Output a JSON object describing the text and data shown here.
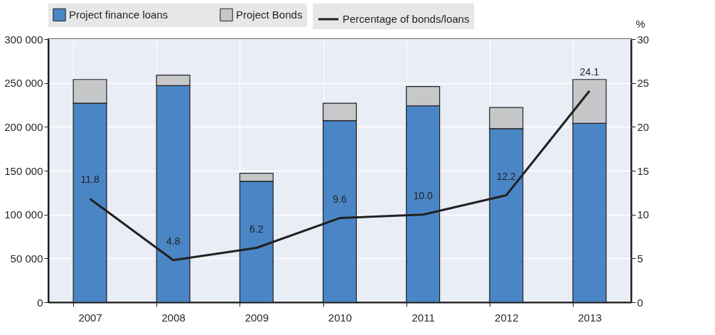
{
  "chart_data": {
    "type": "bar",
    "stacked": true,
    "categories": [
      "2007",
      "2008",
      "2009",
      "2010",
      "2011",
      "2012",
      "2013"
    ],
    "series": [
      {
        "name": "Project finance loans",
        "color": "#4a86c5",
        "values": [
          227000,
          247000,
          138000,
          207000,
          224000,
          198000,
          204000
        ]
      },
      {
        "name": "Project Bonds",
        "color": "#c6c7c9",
        "values": [
          27000,
          12000,
          9000,
          20000,
          22000,
          24000,
          50000
        ]
      },
      {
        "name": "Percentage of bonds/loans",
        "type": "line",
        "axis": "y2",
        "color": "#231f20",
        "values": [
          11.8,
          4.8,
          6.2,
          9.6,
          10.0,
          12.2,
          24.1
        ],
        "value_labels": [
          "11.8",
          "4.8",
          "6.2",
          "9.6",
          "10.0",
          "12.2",
          "24.1"
        ]
      }
    ],
    "ylim": [
      0,
      300000
    ],
    "yticks": [
      {
        "value": 0,
        "label": "0"
      },
      {
        "value": 50000,
        "label": "50 000"
      },
      {
        "value": 100000,
        "label": "100 000"
      },
      {
        "value": 150000,
        "label": "150 000"
      },
      {
        "value": 200000,
        "label": "200 000"
      },
      {
        "value": 250000,
        "label": "250 000"
      },
      {
        "value": 300000,
        "label": "300 000"
      }
    ],
    "y2lim": [
      0,
      30
    ],
    "y2ticks": [
      0,
      5,
      10,
      15,
      20,
      25,
      30
    ],
    "y2label": "%",
    "grid": true,
    "legend": "top",
    "marker": "none",
    "line_style": "solid"
  }
}
